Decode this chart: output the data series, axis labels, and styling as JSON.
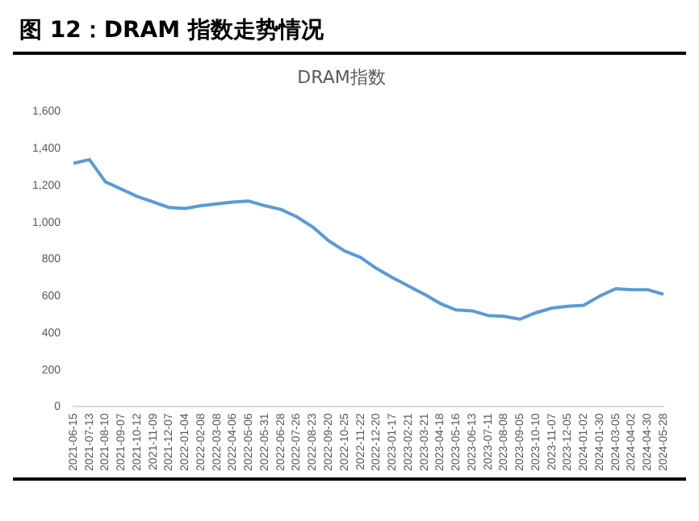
{
  "chart_data": {
    "type": "line",
    "title": "图 12：DRAM 指数走势情况",
    "subtitle": "DRAM指数",
    "categories": [
      "2021-06-15",
      "2021-07-13",
      "2021-08-10",
      "2021-09-07",
      "2021-10-12",
      "2021-11-09",
      "2021-12-07",
      "2022-01-04",
      "2022-02-08",
      "2022-03-08",
      "2022-04-06",
      "2022-05-06",
      "2022-05-31",
      "2022-06-28",
      "2022-07-26",
      "2022-08-23",
      "2022-09-20",
      "2022-10-25",
      "2022-11-22",
      "2022-12-20",
      "2023-01-17",
      "2023-02-21",
      "2023-03-21",
      "2023-04-18",
      "2023-05-16",
      "2023-06-13",
      "2023-07-11",
      "2023-08-08",
      "2023-09-05",
      "2023-10-10",
      "2023-11-07",
      "2023-12-05",
      "2024-01-02",
      "2024-01-30",
      "2024-03-05",
      "2024-04-02",
      "2024-04-30",
      "2024-05-28"
    ],
    "series": [
      {
        "color": "#5b9bd5",
        "values": [
          1320,
          1340,
          1220,
          1180,
          1140,
          1110,
          1080,
          1075,
          1090,
          1100,
          1110,
          1115,
          1090,
          1070,
          1030,
          975,
          900,
          845,
          810,
          750,
          700,
          655,
          610,
          560,
          525,
          520,
          495,
          490,
          475,
          510,
          535,
          545,
          550,
          600,
          640,
          635,
          635,
          610
        ]
      }
    ],
    "ylim": [
      0,
      1600
    ],
    "yticks": [
      0,
      200,
      400,
      600,
      800,
      {
        "value": 1000,
        "label": "1,000"
      },
      {
        "value": 1200,
        "label": "1,200"
      },
      {
        "value": 1400,
        "label": "1,400"
      },
      {
        "value": 1600,
        "label": "1,600"
      }
    ],
    "grid": false,
    "legend": false,
    "marker": "none",
    "line_style": "solid"
  }
}
